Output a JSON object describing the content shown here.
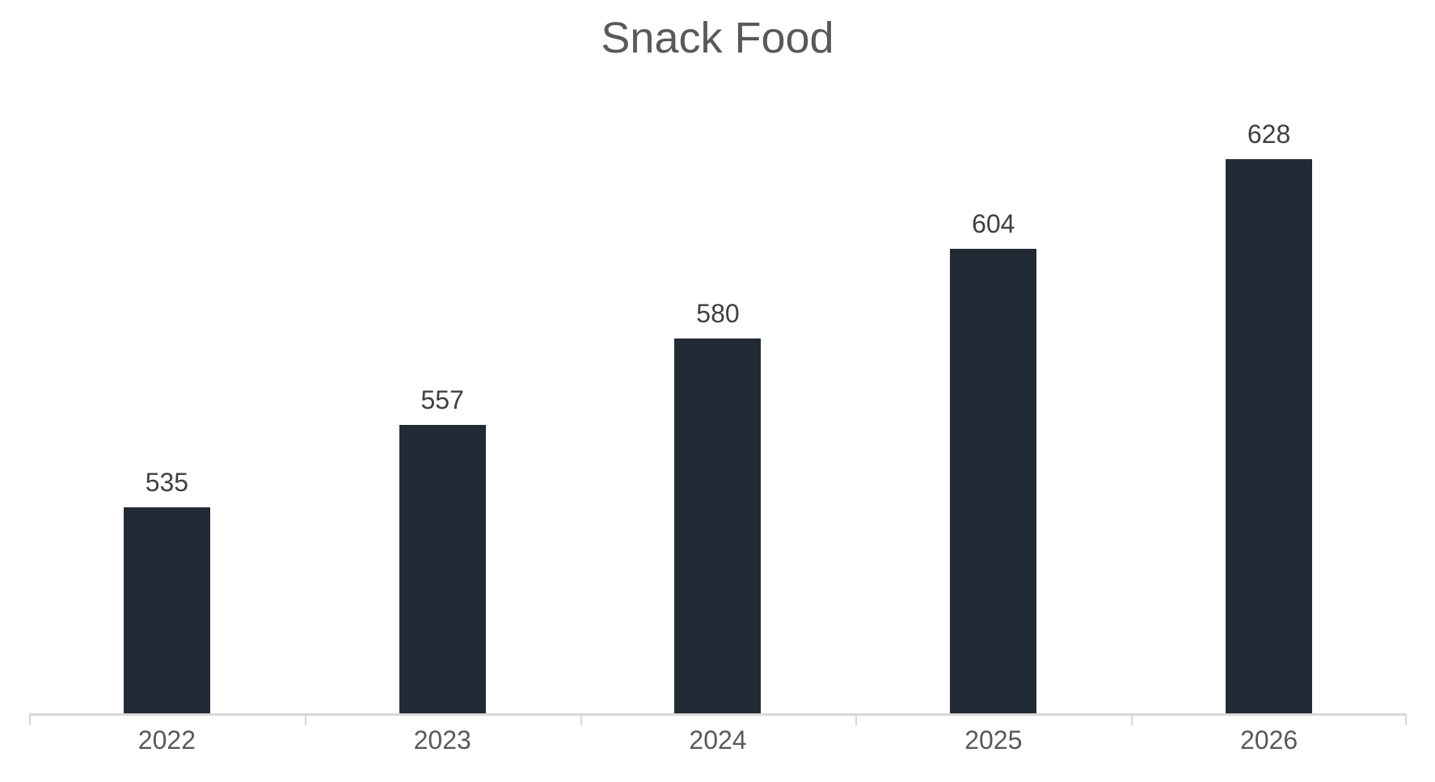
{
  "chart_data": {
    "type": "bar",
    "title": "Snack Food",
    "categories": [
      "2022",
      "2023",
      "2024",
      "2025",
      "2026"
    ],
    "values": [
      535,
      557,
      580,
      604,
      628
    ],
    "xlabel": "",
    "ylabel": "",
    "ylim": [
      480,
      650
    ],
    "grid": false,
    "legend": false,
    "data_labels": true,
    "bar_color": "#222A35"
  },
  "colors": {
    "bar": "#222A35",
    "title": "#595959",
    "data_label": "#404040",
    "axis_label": "#595959",
    "axis_line": "#D9D9D9",
    "background": "#FFFFFF"
  }
}
